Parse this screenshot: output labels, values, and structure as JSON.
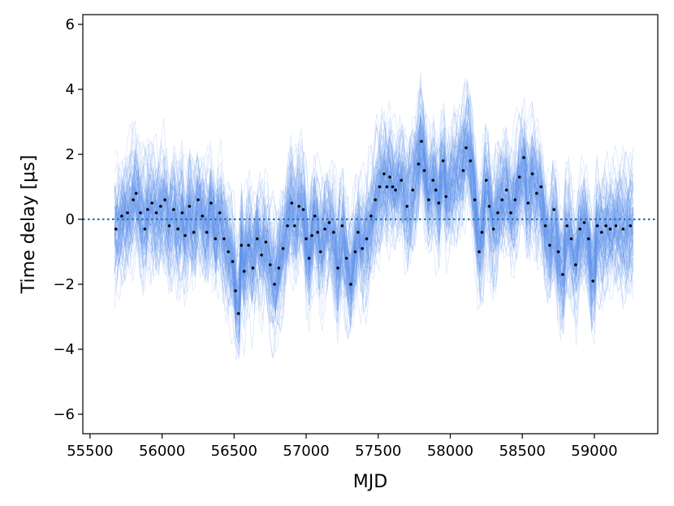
{
  "chart_data": {
    "type": "line",
    "xlabel": "MJD",
    "ylabel": "Time delay [μs]",
    "xlim": [
      55450,
      59440
    ],
    "ylim": [
      -6.6,
      6.3
    ],
    "xticks": [
      55500,
      56000,
      56500,
      57000,
      57500,
      58000,
      58500,
      59000
    ],
    "yticks": [
      -6,
      -4,
      -2,
      0,
      2,
      4,
      6
    ],
    "xtick_labels": [
      "55500",
      "56000",
      "56500",
      "57000",
      "57500",
      "58000",
      "58500",
      "59000"
    ],
    "ytick_labels": [
      "−6",
      "−4",
      "−2",
      "0",
      "2",
      "4",
      "6"
    ],
    "grid": false,
    "reference_line": {
      "y": 0,
      "style": "dotted",
      "color": "#1f77b4"
    },
    "series": [
      {
        "style": "scatter",
        "color": "#000000",
        "x": [
          55680,
          55720,
          55760,
          55800,
          55820,
          55850,
          55880,
          55900,
          55930,
          55960,
          55990,
          56020,
          56050,
          56080,
          56110,
          56140,
          56160,
          56190,
          56220,
          56250,
          56280,
          56310,
          56340,
          56370,
          56400,
          56430,
          56460,
          56490,
          56510,
          56530,
          56550,
          56570,
          56600,
          56630,
          56660,
          56690,
          56720,
          56750,
          56780,
          56810,
          56840,
          56870,
          56900,
          56920,
          56950,
          56980,
          57000,
          57020,
          57040,
          57060,
          57080,
          57100,
          57130,
          57160,
          57190,
          57220,
          57250,
          57280,
          57310,
          57340,
          57360,
          57390,
          57420,
          57450,
          57480,
          57510,
          57540,
          57560,
          57580,
          57600,
          57620,
          57660,
          57700,
          57740,
          57780,
          57800,
          57820,
          57850,
          57880,
          57900,
          57920,
          57950,
          57970,
          58090,
          58110,
          58140,
          58170,
          58200,
          58220,
          58250,
          58270,
          58300,
          58330,
          58360,
          58390,
          58420,
          58450,
          58480,
          58510,
          58540,
          58570,
          58600,
          58630,
          58660,
          58690,
          58720,
          58750,
          58780,
          58810,
          58840,
          58870,
          58900,
          58930,
          58960,
          58990,
          59020,
          59050,
          59080,
          59110,
          59150,
          59200,
          59250
        ],
        "values": [
          -0.3,
          0.1,
          0.2,
          0.6,
          0.8,
          0.2,
          -0.3,
          0.3,
          0.5,
          0.2,
          0.4,
          0.6,
          -0.2,
          0.3,
          -0.3,
          0.2,
          -0.5,
          0.4,
          -0.4,
          0.6,
          0.1,
          -0.4,
          0.5,
          -0.6,
          0.2,
          -0.6,
          -1.0,
          -1.3,
          -2.2,
          -2.9,
          -0.8,
          -1.6,
          -0.8,
          -1.5,
          -0.6,
          -1.1,
          -0.7,
          -1.4,
          -2.0,
          -1.5,
          -0.9,
          -0.2,
          0.5,
          -0.2,
          0.4,
          0.3,
          -0.6,
          -1.2,
          -0.5,
          0.1,
          -0.4,
          -1.0,
          -0.3,
          -0.1,
          -0.4,
          -1.5,
          -0.2,
          -1.2,
          -2.0,
          -1.0,
          -0.4,
          -0.9,
          -0.6,
          0.1,
          0.6,
          1.0,
          1.4,
          1.0,
          1.3,
          1.0,
          0.9,
          1.2,
          0.4,
          0.9,
          1.7,
          2.4,
          1.5,
          0.6,
          1.2,
          0.9,
          0.5,
          1.8,
          0.7,
          1.5,
          2.2,
          1.8,
          0.6,
          -1.0,
          -0.4,
          1.2,
          0.4,
          -0.3,
          0.2,
          0.6,
          0.9,
          0.2,
          0.6,
          1.3,
          1.9,
          0.5,
          1.4,
          0.8,
          1.0,
          -0.2,
          -0.8,
          0.3,
          -1.0,
          -1.7,
          -0.2,
          -0.6,
          -1.4,
          -0.3,
          -0.1,
          -0.6,
          -1.9,
          -0.2,
          -0.4,
          -0.2,
          -0.3,
          -0.2,
          -0.3,
          -0.2
        ]
      },
      {
        "style": "ensemble-lines",
        "color": "#6495ed",
        "count": 120
      }
    ]
  }
}
